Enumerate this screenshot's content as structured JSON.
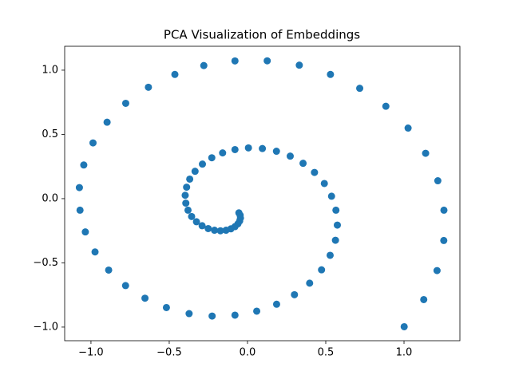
{
  "chart_data": {
    "type": "scatter",
    "title": "PCA Visualization of Embeddings",
    "color": "#1f77b4",
    "x": [
      -0.055,
      -0.047,
      -0.045,
      -0.05,
      -0.061,
      -0.08,
      -0.106,
      -0.137,
      -0.173,
      -0.211,
      -0.251,
      -0.29,
      -0.326,
      -0.357,
      -0.38,
      -0.394,
      -0.398,
      -0.389,
      -0.369,
      -0.335,
      -0.288,
      -0.228,
      -0.159,
      -0.08,
      0.006,
      0.095,
      0.185,
      0.273,
      0.355,
      0.428,
      0.491,
      0.537,
      0.565,
      0.574,
      0.562,
      0.528,
      0.473,
      0.397,
      0.3,
      0.186,
      0.059,
      -0.08,
      -0.226,
      -0.373,
      -0.518,
      -0.655,
      -0.779,
      -0.887,
      -0.974,
      -1.036,
      -1.07,
      -1.074,
      -1.046,
      -0.987,
      -0.897,
      -0.778,
      -0.633,
      -0.464,
      -0.279,
      -0.08,
      0.126,
      0.331,
      0.53,
      0.717,
      0.884,
      1.026,
      1.138,
      1.216,
      1.255,
      1.254,
      1.211,
      1.126,
      1.001
    ],
    "values": [
      -0.111,
      -0.129,
      -0.151,
      -0.174,
      -0.196,
      -0.218,
      -0.235,
      -0.246,
      -0.25,
      -0.246,
      -0.233,
      -0.211,
      -0.18,
      -0.139,
      -0.09,
      -0.035,
      0.026,
      0.089,
      0.152,
      0.213,
      0.269,
      0.318,
      0.356,
      0.382,
      0.395,
      0.39,
      0.369,
      0.331,
      0.275,
      0.204,
      0.118,
      0.019,
      -0.09,
      -0.206,
      -0.324,
      -0.441,
      -0.554,
      -0.658,
      -0.748,
      -0.822,
      -0.876,
      -0.907,
      -0.914,
      -0.895,
      -0.848,
      -0.775,
      -0.677,
      -0.556,
      -0.415,
      -0.259,
      -0.09,
      0.086,
      0.262,
      0.434,
      0.595,
      0.742,
      0.867,
      0.967,
      1.036,
      1.072,
      1.073,
      1.039,
      0.967,
      0.859,
      0.719,
      0.549,
      0.353,
      0.139,
      -0.09,
      -0.326,
      -0.56,
      -0.786,
      -0.997
    ],
    "xlim": [
      -1.168,
      1.357
    ],
    "ylim": [
      -1.106,
      1.186
    ],
    "xticks": [
      {
        "value": -1.0,
        "label": "−1.0"
      },
      {
        "value": -0.5,
        "label": "−0.5"
      },
      {
        "value": 0.0,
        "label": "0.0"
      },
      {
        "value": 0.5,
        "label": "0.5"
      },
      {
        "value": 1.0,
        "label": "1.0"
      }
    ],
    "yticks": [
      {
        "value": -1.0,
        "label": "−1.0"
      },
      {
        "value": -0.5,
        "label": "−0.5"
      },
      {
        "value": 0.0,
        "label": "0.0"
      },
      {
        "value": 0.5,
        "label": "0.5"
      },
      {
        "value": 1.0,
        "label": "1.0"
      }
    ],
    "grid": false
  }
}
